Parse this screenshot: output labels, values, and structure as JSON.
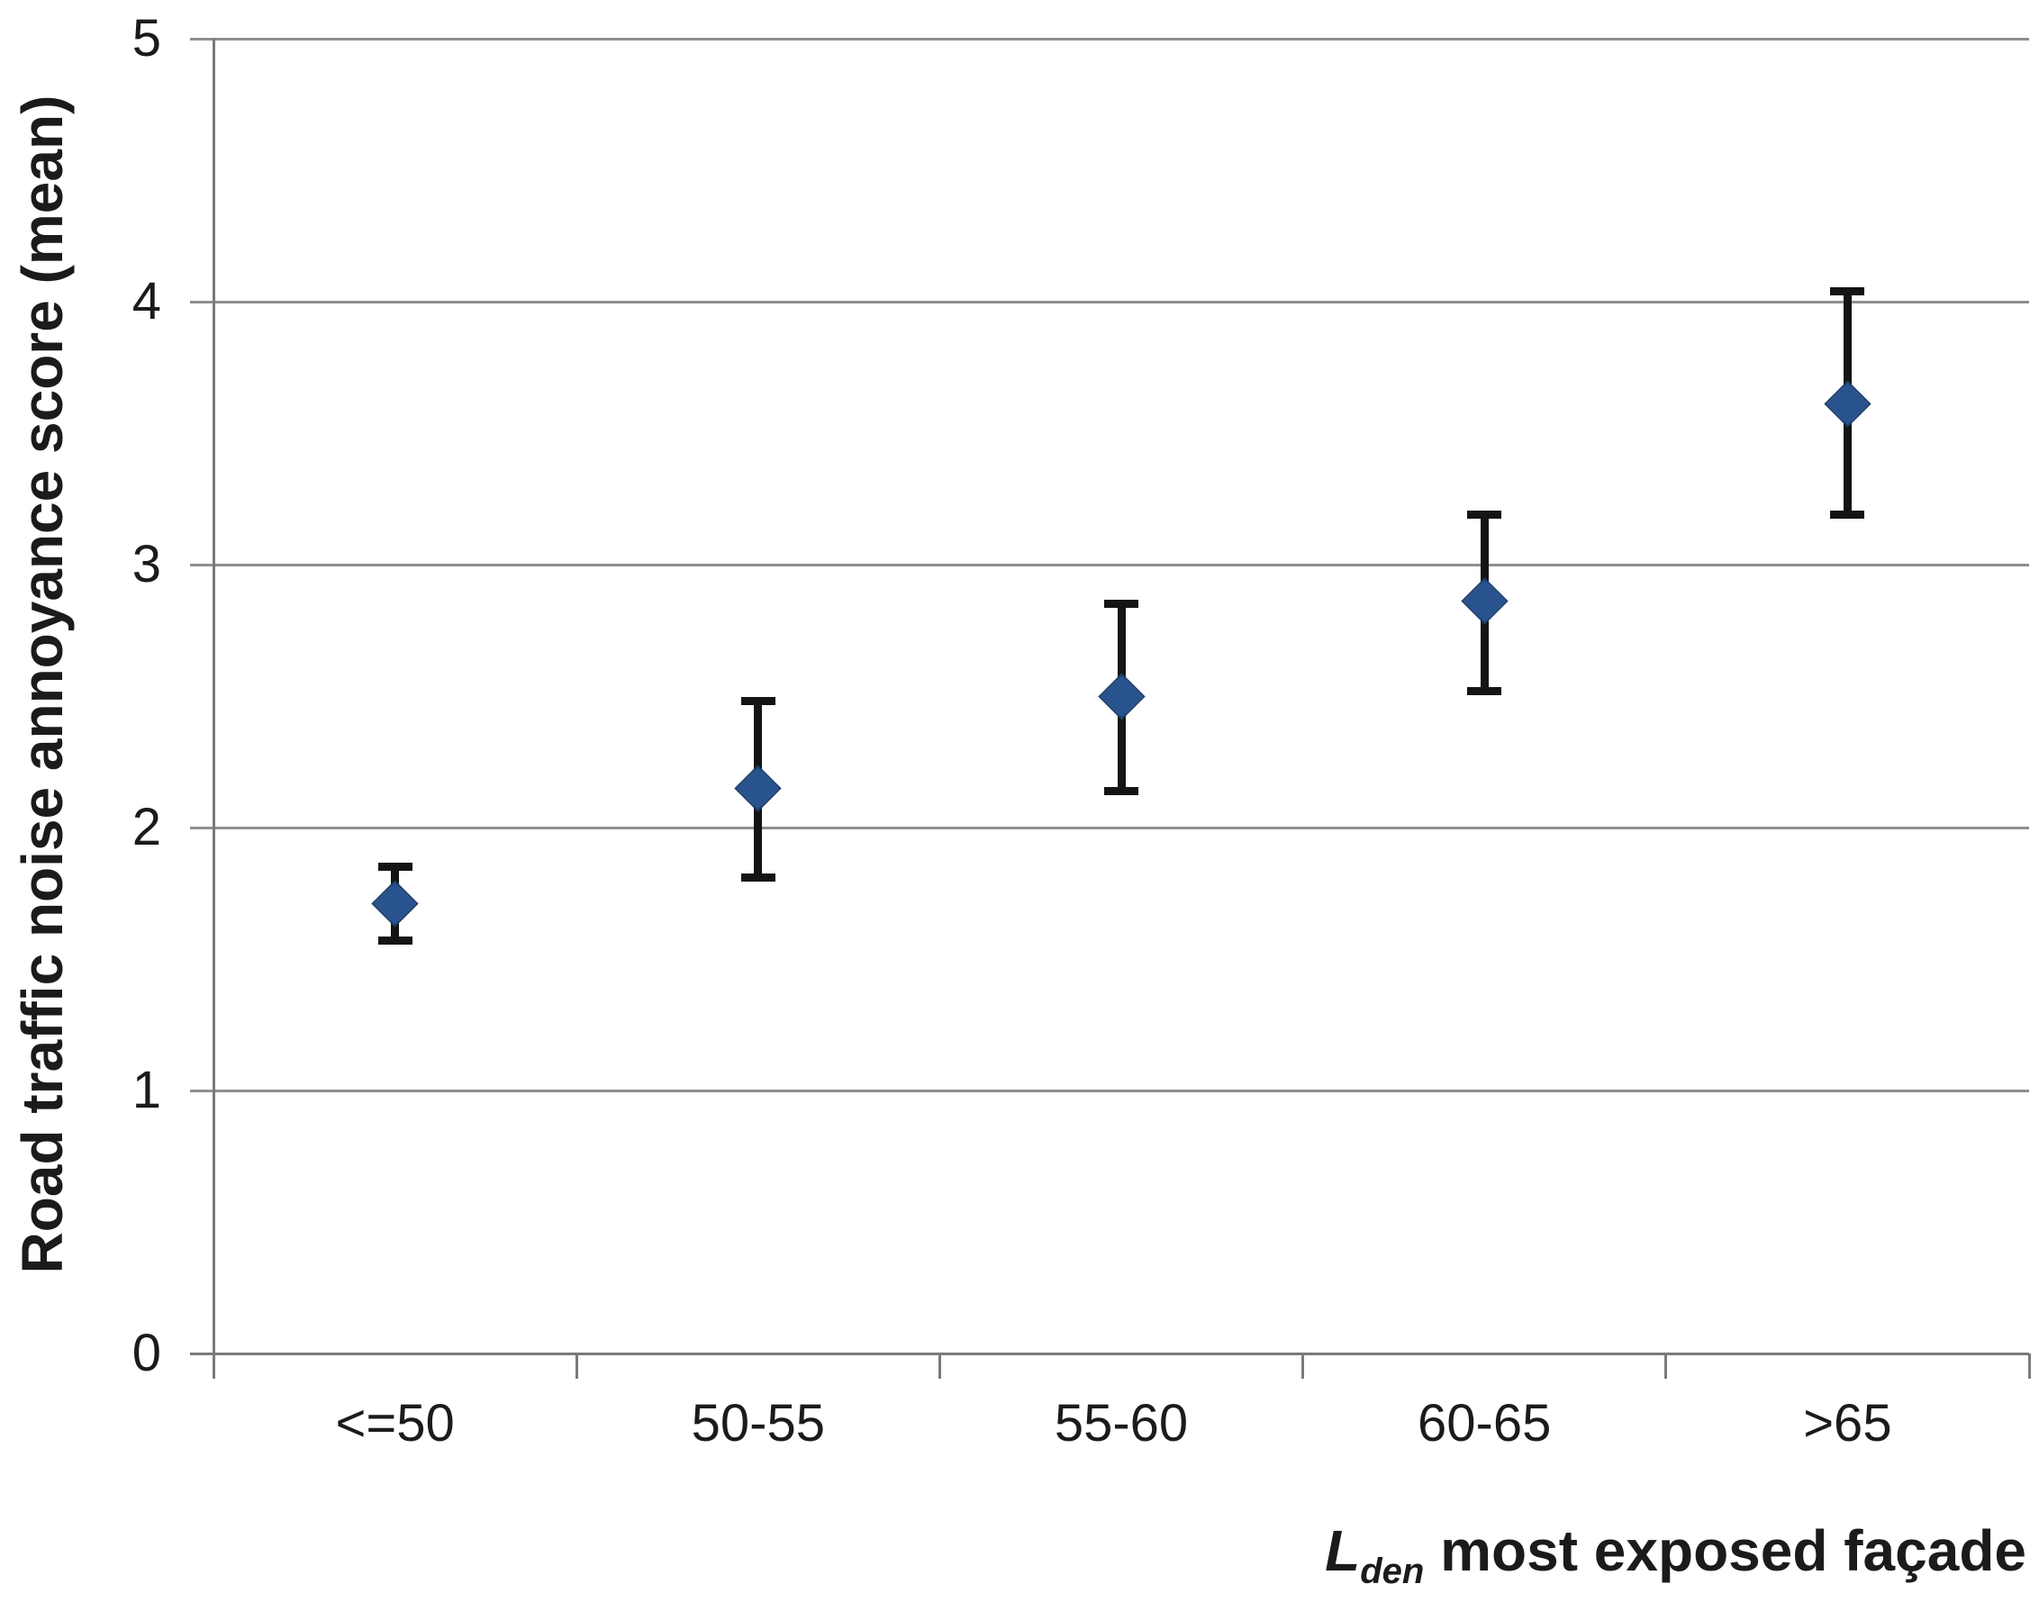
{
  "chart_data": {
    "type": "scatter",
    "title": "",
    "ylabel": "Road traffic noise annoyance score (mean)",
    "xlabel": {
      "prefix_italic": "L",
      "subscript": "den",
      "rest": " most exposed façade"
    },
    "categories": [
      "<=50",
      "50-55",
      "55-60",
      "60-65",
      ">65"
    ],
    "series": [
      {
        "name": "Road traffic noise annoyance score (mean)",
        "values": [
          1.71,
          2.15,
          2.5,
          2.86,
          3.61
        ],
        "error_low": [
          1.57,
          1.81,
          2.14,
          2.52,
          3.19
        ],
        "error_high": [
          1.85,
          2.48,
          2.85,
          3.19,
          4.04
        ]
      }
    ],
    "ylim": [
      0,
      5
    ],
    "yticks": [
      0,
      1,
      2,
      3,
      4,
      5
    ],
    "grid": "horizontal",
    "legend": "none",
    "marker": {
      "shape": "diamond",
      "color": "#28538f",
      "border_color": "#1d3e6b"
    },
    "colors": {
      "error_bar": "#141414",
      "gridline": "#8f8f8f",
      "axis_line": "#7a7a7a",
      "text": "#1b1b1b",
      "background": "#ffffff"
    }
  }
}
